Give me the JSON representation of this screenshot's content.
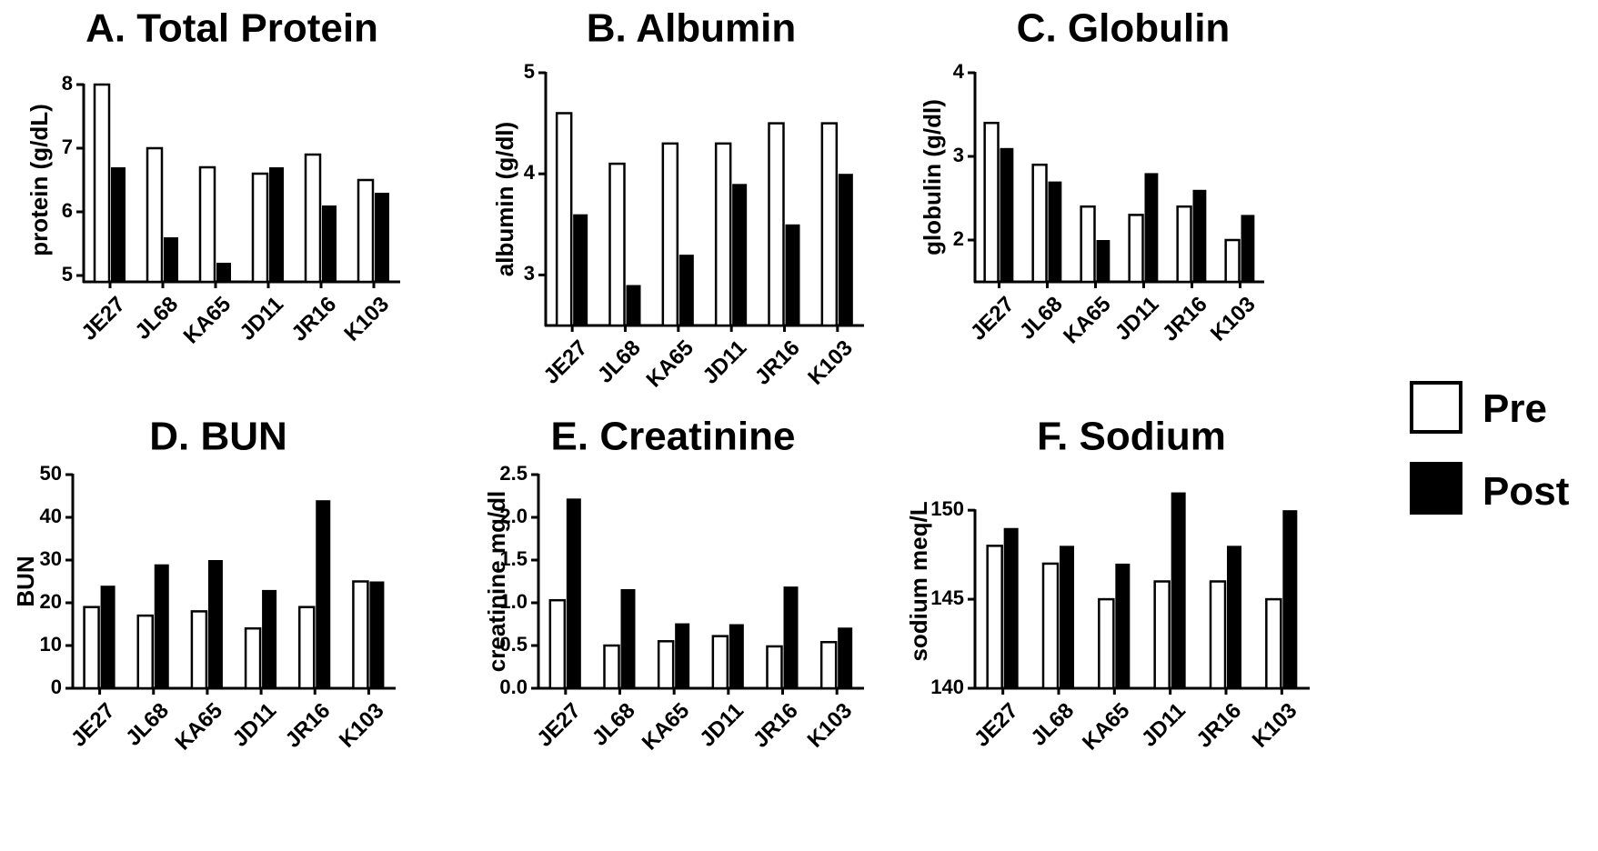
{
  "chart_data": [
    {
      "type": "bar",
      "title": "A. Total Protein",
      "ylabel": "protein (g/dL)",
      "ylim": [
        4.9,
        8.1
      ],
      "yticks": [
        5,
        6,
        7,
        8
      ],
      "categories": [
        "JE27",
        "JL68",
        "KA65",
        "JD11",
        "JR16",
        "K103"
      ],
      "series": [
        {
          "name": "Pre",
          "values": [
            8.0,
            7.0,
            6.7,
            6.6,
            6.9,
            6.5
          ]
        },
        {
          "name": "Post",
          "values": [
            6.7,
            5.6,
            5.2,
            6.7,
            6.1,
            6.3
          ]
        }
      ]
    },
    {
      "type": "bar",
      "title": "B. Albumin",
      "ylabel": "albumin (g/dl)",
      "ylim": [
        2.5,
        5
      ],
      "yticks": [
        3,
        4,
        5
      ],
      "categories": [
        "JE27",
        "JL68",
        "KA65",
        "JD11",
        "JR16",
        "K103"
      ],
      "series": [
        {
          "name": "Pre",
          "values": [
            4.6,
            4.1,
            4.3,
            4.3,
            4.5,
            4.5
          ]
        },
        {
          "name": "Post",
          "values": [
            3.6,
            2.9,
            3.2,
            3.9,
            3.5,
            4.0
          ]
        }
      ]
    },
    {
      "type": "bar",
      "title": "C. Globulin",
      "ylabel": "globulin (g/dl)",
      "ylim": [
        1.5,
        4
      ],
      "yticks": [
        2,
        3,
        4
      ],
      "categories": [
        "JE27",
        "JL68",
        "KA65",
        "JD11",
        "JR16",
        "K103"
      ],
      "series": [
        {
          "name": "Pre",
          "values": [
            3.4,
            2.9,
            2.4,
            2.3,
            2.4,
            2.0
          ]
        },
        {
          "name": "Post",
          "values": [
            3.1,
            2.7,
            2.0,
            2.8,
            2.6,
            2.3
          ]
        }
      ]
    },
    {
      "type": "bar",
      "title": "D. BUN",
      "ylabel": "BUN",
      "ylim": [
        0,
        50
      ],
      "yticks": [
        0,
        10,
        20,
        30,
        40,
        50
      ],
      "categories": [
        "JE27",
        "JL68",
        "KA65",
        "JD11",
        "JR16",
        "K103"
      ],
      "series": [
        {
          "name": "Pre",
          "values": [
            19,
            17,
            18,
            14,
            19,
            25
          ]
        },
        {
          "name": "Post",
          "values": [
            24,
            29,
            30,
            23,
            44,
            25
          ]
        }
      ]
    },
    {
      "type": "bar",
      "title": "E. Creatinine",
      "ylabel": "creatinine  mg/dl",
      "ylim": [
        0,
        2.5
      ],
      "yticks": [
        "0.0",
        "0.5",
        "1.0",
        "1.5",
        "2.0",
        "2.5"
      ],
      "categories": [
        "JE27",
        "JL68",
        "KA65",
        "JD11",
        "JR16",
        "K103"
      ],
      "series": [
        {
          "name": "Pre",
          "values": [
            1.03,
            0.5,
            0.55,
            0.61,
            0.49,
            0.54
          ]
        },
        {
          "name": "Post",
          "values": [
            2.22,
            1.16,
            0.76,
            0.75,
            1.19,
            0.71
          ]
        }
      ]
    },
    {
      "type": "bar",
      "title": "F. Sodium",
      "ylabel": "sodium meq/L",
      "ylim": [
        140,
        152
      ],
      "yticks": [
        140,
        145,
        150
      ],
      "categories": [
        "JE27",
        "JL68",
        "KA65",
        "JD11",
        "JR16",
        "K103"
      ],
      "series": [
        {
          "name": "Pre",
          "values": [
            148,
            147,
            145,
            146,
            146,
            145
          ]
        },
        {
          "name": "Post",
          "values": [
            149,
            148,
            147,
            151,
            148,
            150
          ]
        }
      ]
    }
  ],
  "legend": {
    "placement": "right",
    "items": [
      {
        "label": "Pre",
        "fill": "#ffffff"
      },
      {
        "label": "Post",
        "fill": "#000000"
      }
    ]
  }
}
